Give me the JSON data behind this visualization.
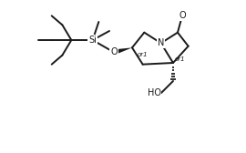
{
  "background_color": "#ffffff",
  "line_color": "#1a1a1a",
  "line_width": 1.4,
  "font_size_atoms": 7.0,
  "font_size_stereo": 5.0,
  "figsize": [
    2.7,
    1.68
  ],
  "dpi": 100,
  "xlim": [
    0,
    14
  ],
  "ylim": [
    0,
    10
  ]
}
